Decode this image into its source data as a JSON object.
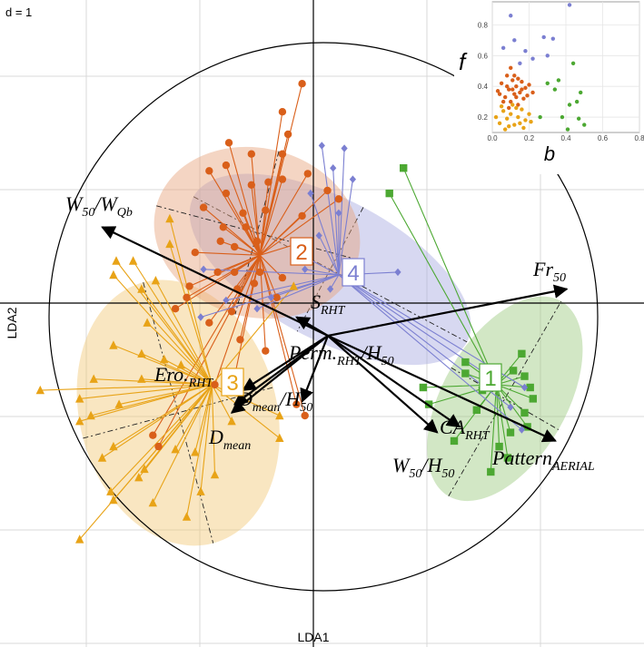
{
  "chart_data": {
    "type": "scatter",
    "title": "",
    "scale_label": "d = 1",
    "xlabel": "LDA1",
    "ylabel": "LDA2",
    "grid": true,
    "colors": {
      "group1": "#4ca832",
      "group2": "#d95f1a",
      "group3": "#e8a317",
      "group4": "#7b7fd1",
      "ellipse1": "#9cc97f",
      "ellipse2": "#e6a27a",
      "ellipse3": "#f2c776",
      "ellipse4": "#a7a9e0",
      "arrow": "#000000"
    },
    "groups": [
      {
        "label": "1",
        "marker": "square",
        "color_key": "group1",
        "centroid": [
          3.25,
          -1.45
        ],
        "ellipse": {
          "rx": 2.0,
          "ry": 1.1,
          "angle": 60,
          "cx": 3.4,
          "cy": -1.7
        },
        "points": [
          [
            1.6,
            2.4
          ],
          [
            1.35,
            1.95
          ],
          [
            2.7,
            -1.25
          ],
          [
            3.55,
            -1.2
          ],
          [
            3.75,
            -1.3
          ],
          [
            3.85,
            -1.5
          ],
          [
            3.9,
            -1.7
          ],
          [
            3.75,
            -1.95
          ],
          [
            3.8,
            -2.2
          ],
          [
            3.5,
            -2.3
          ],
          [
            3.3,
            -2.55
          ],
          [
            3.45,
            -2.75
          ],
          [
            3.0,
            -1.55
          ],
          [
            3.7,
            -0.9
          ],
          [
            3.15,
            -3.0
          ],
          [
            2.5,
            -2.45
          ],
          [
            2.05,
            -1.8
          ],
          [
            2.9,
            -1.9
          ],
          [
            1.95,
            -1.5
          ],
          [
            2.7,
            -1.05
          ]
        ]
      },
      {
        "label": "2",
        "marker": "circle",
        "color_key": "group2",
        "centroid": [
          -0.95,
          0.85
        ],
        "ellipse": {
          "rx": 1.85,
          "ry": 1.5,
          "angle": -15,
          "cx": -1.0,
          "cy": 1.25
        },
        "points": [
          [
            -0.55,
            3.4
          ],
          [
            -0.2,
            3.9
          ],
          [
            -0.45,
            3.0
          ],
          [
            -1.5,
            2.85
          ],
          [
            -1.1,
            2.65
          ],
          [
            -1.55,
            2.45
          ],
          [
            -1.85,
            2.35
          ],
          [
            -1.1,
            2.1
          ],
          [
            -0.8,
            2.15
          ],
          [
            -0.55,
            2.2
          ],
          [
            -0.1,
            2.3
          ],
          [
            0.25,
            2.0
          ],
          [
            0.45,
            1.85
          ],
          [
            -1.55,
            1.95
          ],
          [
            -1.95,
            1.7
          ],
          [
            -1.25,
            1.6
          ],
          [
            -0.85,
            1.65
          ],
          [
            -0.2,
            1.55
          ],
          [
            -1.65,
            1.1
          ],
          [
            -1.4,
            1.0
          ],
          [
            -1.0,
            1.1
          ],
          [
            -0.3,
            1.05
          ],
          [
            -2.1,
            0.9
          ],
          [
            -1.7,
            0.55
          ],
          [
            -1.4,
            0.55
          ],
          [
            -0.95,
            0.55
          ],
          [
            -0.55,
            0.45
          ],
          [
            -2.2,
            0.3
          ],
          [
            -1.35,
            0.25
          ],
          [
            -1.05,
            0.35
          ],
          [
            -0.65,
            0.1
          ],
          [
            -2.25,
            0.1
          ],
          [
            -2.45,
            -0.1
          ],
          [
            -1.45,
            -0.15
          ],
          [
            -1.85,
            -0.35
          ],
          [
            -1.3,
            -0.65
          ],
          [
            -0.85,
            -0.85
          ],
          [
            -1.75,
            -1.45
          ],
          [
            -1.45,
            -1.55
          ],
          [
            -0.3,
            -1.8
          ],
          [
            -2.75,
            -2.55
          ],
          [
            -2.85,
            -2.35
          ],
          [
            -0.15,
            -2.0
          ],
          [
            -1.2,
            1.35
          ],
          [
            -0.55,
            2.65
          ],
          [
            -1.6,
            1.35
          ]
        ]
      },
      {
        "label": "3",
        "marker": "triangle",
        "color_key": "group3",
        "centroid": [
          -1.8,
          -1.45
        ],
        "ellipse": {
          "rx": 1.75,
          "ry": 2.4,
          "angle": 15,
          "cx": -2.4,
          "cy": -1.95
        },
        "points": [
          [
            -2.55,
            1.5
          ],
          [
            -2.55,
            1.05
          ],
          [
            -3.2,
            0.75
          ],
          [
            -3.5,
            0.75
          ],
          [
            -3.55,
            0.5
          ],
          [
            -2.8,
            0.4
          ],
          [
            -3.05,
            0.25
          ],
          [
            -2.95,
            -0.35
          ],
          [
            -3.55,
            -0.75
          ],
          [
            -3.05,
            -0.9
          ],
          [
            -2.65,
            -1.0
          ],
          [
            -2.35,
            -1.1
          ],
          [
            -3.05,
            -1.35
          ],
          [
            -3.9,
            -1.35
          ],
          [
            -4.85,
            -1.55
          ],
          [
            -4.15,
            -1.7
          ],
          [
            -3.45,
            -1.8
          ],
          [
            -3.95,
            -2.0
          ],
          [
            -4.15,
            -2.1
          ],
          [
            -1.45,
            -2.1
          ],
          [
            -0.6,
            -2.0
          ],
          [
            -0.6,
            -2.4
          ],
          [
            -2.45,
            -2.6
          ],
          [
            -3.55,
            -2.55
          ],
          [
            -3.75,
            -2.75
          ],
          [
            -3.0,
            -2.95
          ],
          [
            -3.6,
            -3.35
          ],
          [
            -3.55,
            -3.5
          ],
          [
            -2.85,
            -3.55
          ],
          [
            -4.15,
            -4.2
          ],
          [
            -2.25,
            -3.8
          ],
          [
            -2.1,
            -2.65
          ],
          [
            -1.75,
            -3.05
          ],
          [
            -3.1,
            -3.1
          ],
          [
            -2.0,
            -3.35
          ],
          [
            -0.35,
            0.3
          ]
        ]
      },
      {
        "label": "4",
        "marker": "diamond",
        "color_key": "group4",
        "centroid": [
          0.45,
          0.5
        ],
        "ellipse": {
          "rx": 2.75,
          "ry": 1.25,
          "angle": -28,
          "cx": 0.3,
          "cy": 0.6
        },
        "points": [
          [
            0.15,
            2.8
          ],
          [
            0.55,
            2.75
          ],
          [
            0.35,
            2.4
          ],
          [
            -0.05,
            1.95
          ],
          [
            0.7,
            2.2
          ],
          [
            0.45,
            1.6
          ],
          [
            0.1,
            1.2
          ],
          [
            -0.3,
            0.9
          ],
          [
            -0.15,
            0.6
          ],
          [
            0.3,
            0.25
          ],
          [
            -0.75,
            0.1
          ],
          [
            -1.0,
            -0.1
          ],
          [
            -2.0,
            -0.25
          ],
          [
            -1.95,
            0.6
          ],
          [
            1.5,
            0.55
          ],
          [
            3.75,
            -1.5
          ],
          [
            3.5,
            -1.85
          ],
          [
            3.7,
            -2.25
          ],
          [
            3.2,
            -1.35
          ],
          [
            -1.55,
            0.05
          ]
        ]
      }
    ],
    "arrows": [
      {
        "label": "W",
        "sub": "50",
        "rest": "/W",
        "sub2": "Qb",
        "end": [
          -3.75,
          1.35
        ]
      },
      {
        "label": "Fr",
        "sub": "50",
        "end": [
          4.5,
          0.25
        ]
      },
      {
        "label": "S",
        "sub": "RHT",
        "end": [
          -0.3,
          -0.25
        ]
      },
      {
        "label": "Perm.",
        "sub": "RHT",
        "rest": "/H",
        "sub2": "50",
        "end": [
          -0.2,
          -1.75
        ]
      },
      {
        "label": "Ero.",
        "sub": "RHT",
        "end": [
          -1.25,
          -1.55
        ]
      },
      {
        "label": "D",
        "sub": "mean",
        "rest": "/H",
        "sub2": "50",
        "end": [
          -1.4,
          -1.8
        ]
      },
      {
        "label": "D",
        "sub": "mean",
        "end": [
          -1.45,
          -1.95
        ]
      },
      {
        "label": "CA",
        "sub": "RHT",
        "end": [
          2.6,
          -2.2
        ]
      },
      {
        "label": "W",
        "sub": "50",
        "rest": "/H",
        "sub2": "50",
        "end": [
          2.2,
          -2.3
        ]
      },
      {
        "label": "Pattern",
        "sub": "AERIAL",
        "end": [
          4.3,
          -2.45
        ]
      }
    ],
    "inset": {
      "type": "scatter",
      "xlabel": "b",
      "ylabel": "f",
      "xlim": [
        0.0,
        0.8
      ],
      "ylim": [
        0.1,
        0.95
      ],
      "xticks": [
        "0.0",
        "0.2",
        "0.4",
        "0.6",
        "0.8"
      ],
      "yticks": [
        "0.2",
        "0.4",
        "0.6",
        "0.8"
      ],
      "series": [
        {
          "color_key": "group2",
          "points": [
            [
              0.03,
              0.37
            ],
            [
              0.05,
              0.42
            ],
            [
              0.07,
              0.33
            ],
            [
              0.08,
              0.47
            ],
            [
              0.09,
              0.38
            ],
            [
              0.1,
              0.3
            ],
            [
              0.11,
              0.44
            ],
            [
              0.12,
              0.35
            ],
            [
              0.13,
              0.4
            ],
            [
              0.14,
              0.28
            ],
            [
              0.15,
              0.36
            ],
            [
              0.16,
              0.43
            ],
            [
              0.17,
              0.32
            ],
            [
              0.18,
              0.39
            ],
            [
              0.19,
              0.34
            ],
            [
              0.2,
              0.41
            ],
            [
              0.06,
              0.3
            ],
            [
              0.04,
              0.35
            ],
            [
              0.12,
              0.47
            ],
            [
              0.1,
              0.52
            ],
            [
              0.08,
              0.4
            ],
            [
              0.14,
              0.45
            ],
            [
              0.16,
              0.38
            ],
            [
              0.22,
              0.36
            ],
            [
              0.09,
              0.26
            ],
            [
              0.13,
              0.33
            ],
            [
              0.11,
              0.38
            ]
          ]
        },
        {
          "color_key": "group3",
          "points": [
            [
              0.02,
              0.2
            ],
            [
              0.04,
              0.16
            ],
            [
              0.06,
              0.24
            ],
            [
              0.08,
              0.19
            ],
            [
              0.1,
              0.22
            ],
            [
              0.12,
              0.15
            ],
            [
              0.14,
              0.2
            ],
            [
              0.16,
              0.25
            ],
            [
              0.18,
              0.18
            ],
            [
              0.2,
              0.22
            ],
            [
              0.05,
              0.27
            ],
            [
              0.09,
              0.14
            ],
            [
              0.13,
              0.26
            ],
            [
              0.17,
              0.13
            ],
            [
              0.21,
              0.17
            ],
            [
              0.07,
              0.12
            ],
            [
              0.11,
              0.28
            ],
            [
              0.15,
              0.16
            ]
          ]
        },
        {
          "color_key": "group1",
          "points": [
            [
              0.3,
              0.42
            ],
            [
              0.34,
              0.38
            ],
            [
              0.38,
              0.2
            ],
            [
              0.42,
              0.28
            ],
            [
              0.44,
              0.55
            ],
            [
              0.46,
              0.3
            ],
            [
              0.47,
              0.19
            ],
            [
              0.5,
              0.15
            ],
            [
              0.26,
              0.2
            ],
            [
              0.36,
              0.44
            ],
            [
              0.41,
              0.12
            ],
            [
              0.48,
              0.36
            ]
          ]
        },
        {
          "color_key": "group4",
          "points": [
            [
              0.1,
              0.86
            ],
            [
              0.12,
              0.7
            ],
            [
              0.22,
              0.58
            ],
            [
              0.28,
              0.72
            ],
            [
              0.3,
              0.6
            ],
            [
              0.15,
              0.55
            ],
            [
              0.06,
              0.65
            ],
            [
              0.42,
              0.93
            ],
            [
              0.33,
              0.71
            ],
            [
              0.18,
              0.63
            ]
          ]
        }
      ]
    }
  }
}
